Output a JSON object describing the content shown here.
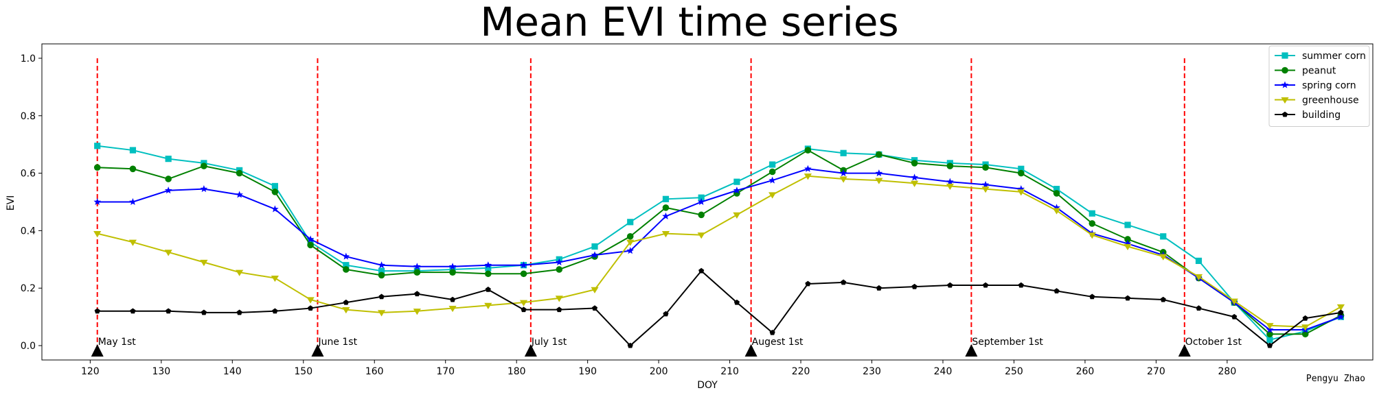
{
  "chart_data": {
    "type": "line",
    "title": "Mean EVI time series",
    "xlabel": "DOY",
    "ylabel": "EVI",
    "xlim": [
      113.2,
      300.5
    ],
    "ylim": [
      -0.05,
      1.05
    ],
    "xticks": [
      120,
      130,
      140,
      150,
      160,
      170,
      180,
      190,
      200,
      210,
      220,
      230,
      240,
      250,
      260,
      270,
      280
    ],
    "yticks": [
      0.0,
      0.2,
      0.4,
      0.6,
      0.8,
      1.0
    ],
    "ytick_labels": [
      "0.0",
      "0.2",
      "0.4",
      "0.6",
      "0.8",
      "1.0"
    ],
    "grid": false,
    "legend_position": "top-right",
    "x": [
      121,
      126,
      131,
      136,
      141,
      146,
      151,
      156,
      161,
      166,
      171,
      176,
      181,
      186,
      191,
      196,
      201,
      206,
      211,
      216,
      221,
      226,
      231,
      236,
      241,
      246,
      251,
      256,
      261,
      266,
      271,
      276,
      281,
      286,
      291,
      296
    ],
    "series": [
      {
        "name": "summer corn",
        "color": "#00bfbf",
        "marker": "square",
        "values": [
          0.695,
          0.68,
          0.65,
          0.635,
          0.61,
          0.555,
          0.36,
          0.28,
          0.26,
          0.26,
          0.265,
          0.27,
          0.28,
          0.3,
          0.345,
          0.43,
          0.51,
          0.515,
          0.57,
          0.63,
          0.685,
          0.67,
          0.665,
          0.645,
          0.635,
          0.63,
          0.615,
          0.545,
          0.46,
          0.42,
          0.38,
          0.295,
          0.15,
          0.02,
          0.05,
          0.1
        ]
      },
      {
        "name": "peanut",
        "color": "#008000",
        "marker": "circle",
        "values": [
          0.62,
          0.615,
          0.58,
          0.625,
          0.6,
          0.535,
          0.35,
          0.265,
          0.245,
          0.255,
          0.255,
          0.25,
          0.25,
          0.265,
          0.31,
          0.38,
          0.48,
          0.455,
          0.53,
          0.605,
          0.68,
          0.61,
          0.665,
          0.635,
          0.625,
          0.62,
          0.6,
          0.53,
          0.425,
          0.37,
          0.325,
          0.235,
          0.15,
          0.04,
          0.04,
          0.105
        ]
      },
      {
        "name": "spring corn",
        "color": "#0000ff",
        "marker": "star",
        "values": [
          0.5,
          0.5,
          0.54,
          0.545,
          0.525,
          0.475,
          0.37,
          0.31,
          0.28,
          0.275,
          0.275,
          0.28,
          0.28,
          0.29,
          0.315,
          0.33,
          0.45,
          0.5,
          0.54,
          0.575,
          0.615,
          0.6,
          0.6,
          0.585,
          0.57,
          0.56,
          0.545,
          0.48,
          0.39,
          0.355,
          0.315,
          0.235,
          0.15,
          0.055,
          0.055,
          0.1
        ]
      },
      {
        "name": "greenhouse",
        "color": "#bfbf00",
        "marker": "triangle-down",
        "values": [
          0.39,
          0.36,
          0.325,
          0.29,
          0.255,
          0.235,
          0.16,
          0.125,
          0.115,
          0.12,
          0.13,
          0.14,
          0.15,
          0.165,
          0.195,
          0.36,
          0.39,
          0.385,
          0.455,
          0.525,
          0.59,
          0.58,
          0.575,
          0.565,
          0.555,
          0.545,
          0.535,
          0.47,
          0.385,
          0.345,
          0.31,
          0.24,
          0.155,
          0.07,
          0.065,
          0.135
        ]
      },
      {
        "name": "building",
        "color": "#000000",
        "marker": "pentagon",
        "values": [
          0.12,
          0.12,
          0.12,
          0.115,
          0.115,
          0.12,
          0.13,
          0.15,
          0.17,
          0.18,
          0.16,
          0.195,
          0.125,
          0.125,
          0.13,
          0.0,
          0.11,
          0.26,
          0.15,
          0.045,
          0.215,
          0.22,
          0.2,
          0.205,
          0.21,
          0.21,
          0.21,
          0.19,
          0.17,
          0.165,
          0.16,
          0.13,
          0.1,
          0.0,
          0.095,
          0.115
        ]
      }
    ],
    "vlines": [
      {
        "x": 121,
        "label": "May 1st"
      },
      {
        "x": 152,
        "label": "June 1st"
      },
      {
        "x": 182,
        "label": "July 1st"
      },
      {
        "x": 213,
        "label": "Augest 1st"
      },
      {
        "x": 244,
        "label": "September 1st"
      },
      {
        "x": 274,
        "label": "October 1st"
      }
    ],
    "vline_color": "#ff0000",
    "vline_range": [
      0.0,
      1.0
    ],
    "marker_color": "#000000",
    "annotation": "Pengyu Zhao"
  }
}
